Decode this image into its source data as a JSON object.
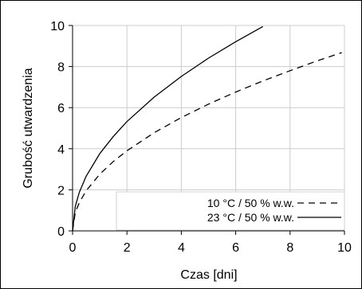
{
  "chart_data": {
    "type": "line",
    "xlabel": "Czas [dni]",
    "ylabel": "Grubość utwardzenia",
    "xlim": [
      0,
      10
    ],
    "ylim": [
      0,
      10
    ],
    "xticks": [
      0,
      2,
      4,
      6,
      8,
      10
    ],
    "yticks": [
      0,
      2,
      4,
      6,
      8,
      10
    ],
    "grid": true,
    "legend_position": "bottom-right",
    "series": [
      {
        "name": "10 °C / 50 % w.w.",
        "style": "dashed",
        "color": "#000000",
        "x": [
          0,
          0.1,
          0.25,
          0.5,
          1,
          1.5,
          2,
          3,
          4,
          5,
          6,
          7,
          8,
          9,
          9.9
        ],
        "y": [
          0,
          0.9,
          1.38,
          1.95,
          2.76,
          3.38,
          3.9,
          4.78,
          5.52,
          6.17,
          6.76,
          7.3,
          7.8,
          8.28,
          8.68
        ]
      },
      {
        "name": "23 °C / 50 % w.w.",
        "style": "solid",
        "color": "#000000",
        "x": [
          0,
          0.1,
          0.25,
          0.5,
          1,
          1.5,
          2,
          3,
          4,
          5,
          6,
          7
        ],
        "y": [
          0,
          1.19,
          1.88,
          2.66,
          3.76,
          4.6,
          5.32,
          6.51,
          7.52,
          8.41,
          9.21,
          9.95
        ]
      }
    ]
  }
}
